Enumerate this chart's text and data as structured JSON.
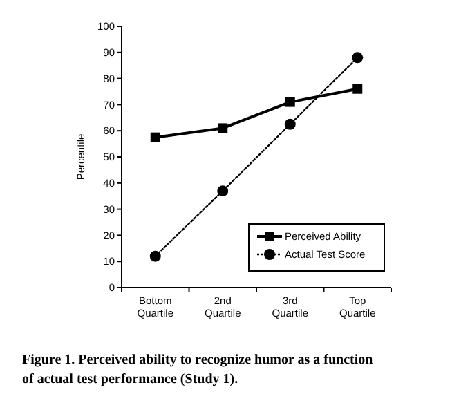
{
  "chart_data": {
    "type": "line",
    "categories": [
      "Bottom Quartile",
      "2nd Quartile",
      "3rd Quartile",
      "Top Quartile"
    ],
    "series": [
      {
        "name": "Perceived Ability",
        "color": "#000000",
        "values": [
          57.5,
          61,
          71,
          76
        ],
        "marker": "square",
        "line_style": "solid"
      },
      {
        "name": "Actual Test Score",
        "color": "#000000",
        "values": [
          12,
          37,
          62.5,
          88
        ],
        "marker": "circle",
        "line_style": "dotted"
      }
    ],
    "ylabel": "Percentile",
    "ylim": [
      0,
      100
    ],
    "yticks": [
      0,
      10,
      20,
      30,
      40,
      50,
      60,
      70,
      80,
      90,
      100
    ],
    "grid": false,
    "legend": "bottom right",
    "annotations": [
      "Figure 1. Perceived ability to recognize humor as a function of actual test performance (Study 1)."
    ]
  }
}
